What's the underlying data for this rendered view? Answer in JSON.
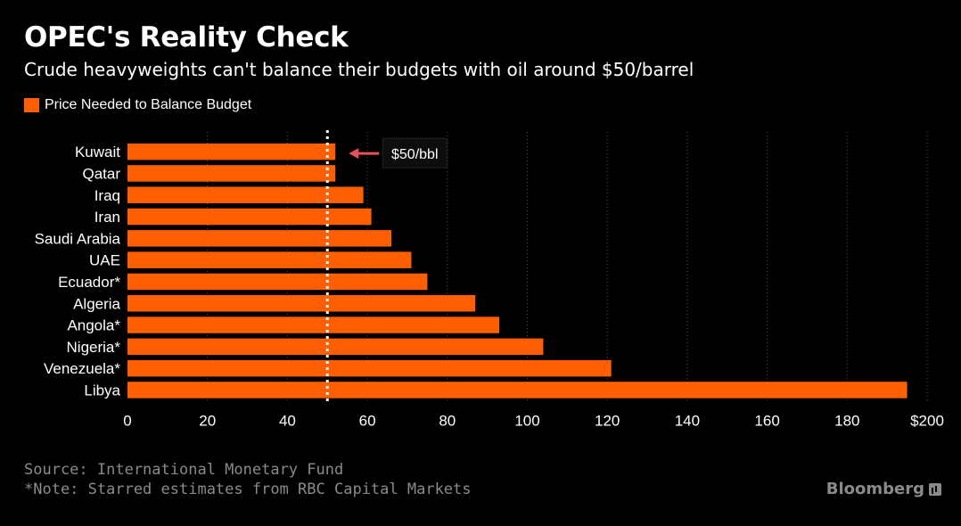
{
  "header": {
    "title": "OPEC's Reality Check",
    "subtitle": "Crude heavyweights can't balance their budgets with oil around $50/barrel"
  },
  "legend": {
    "label": "Price Needed to Balance Budget"
  },
  "footer": {
    "source": "Source: International Monetary Fund",
    "note": "*Note: Starred estimates from RBC Capital Markets",
    "brand": "Bloomberg"
  },
  "colors": {
    "bar": "#ff5f00",
    "background": "#000000",
    "grid": "#555555",
    "annotation_arrow": "#e8505b"
  },
  "chart_data": {
    "type": "bar",
    "orientation": "horizontal",
    "categories": [
      "Kuwait",
      "Qatar",
      "Iraq",
      "Iran",
      "Saudi Arabia",
      "UAE",
      "Ecuador*",
      "Algeria",
      "Angola*",
      "Nigeria*",
      "Venezuela*",
      "Libya"
    ],
    "series": [
      {
        "name": "Price Needed to Balance Budget",
        "values": [
          52,
          52,
          59,
          61,
          66,
          71,
          75,
          87,
          93,
          104,
          121,
          195
        ]
      }
    ],
    "xlim": [
      0,
      200
    ],
    "xticks": [
      0,
      20,
      40,
      60,
      80,
      100,
      120,
      140,
      160,
      180,
      200
    ],
    "xtick_labels": [
      "0",
      "20",
      "40",
      "60",
      "80",
      "100",
      "120",
      "140",
      "160",
      "180",
      "$200"
    ],
    "grid": "vertical dotted",
    "reference_line": {
      "value": 50,
      "label": "$50/bbl",
      "style": "dotted white"
    }
  }
}
